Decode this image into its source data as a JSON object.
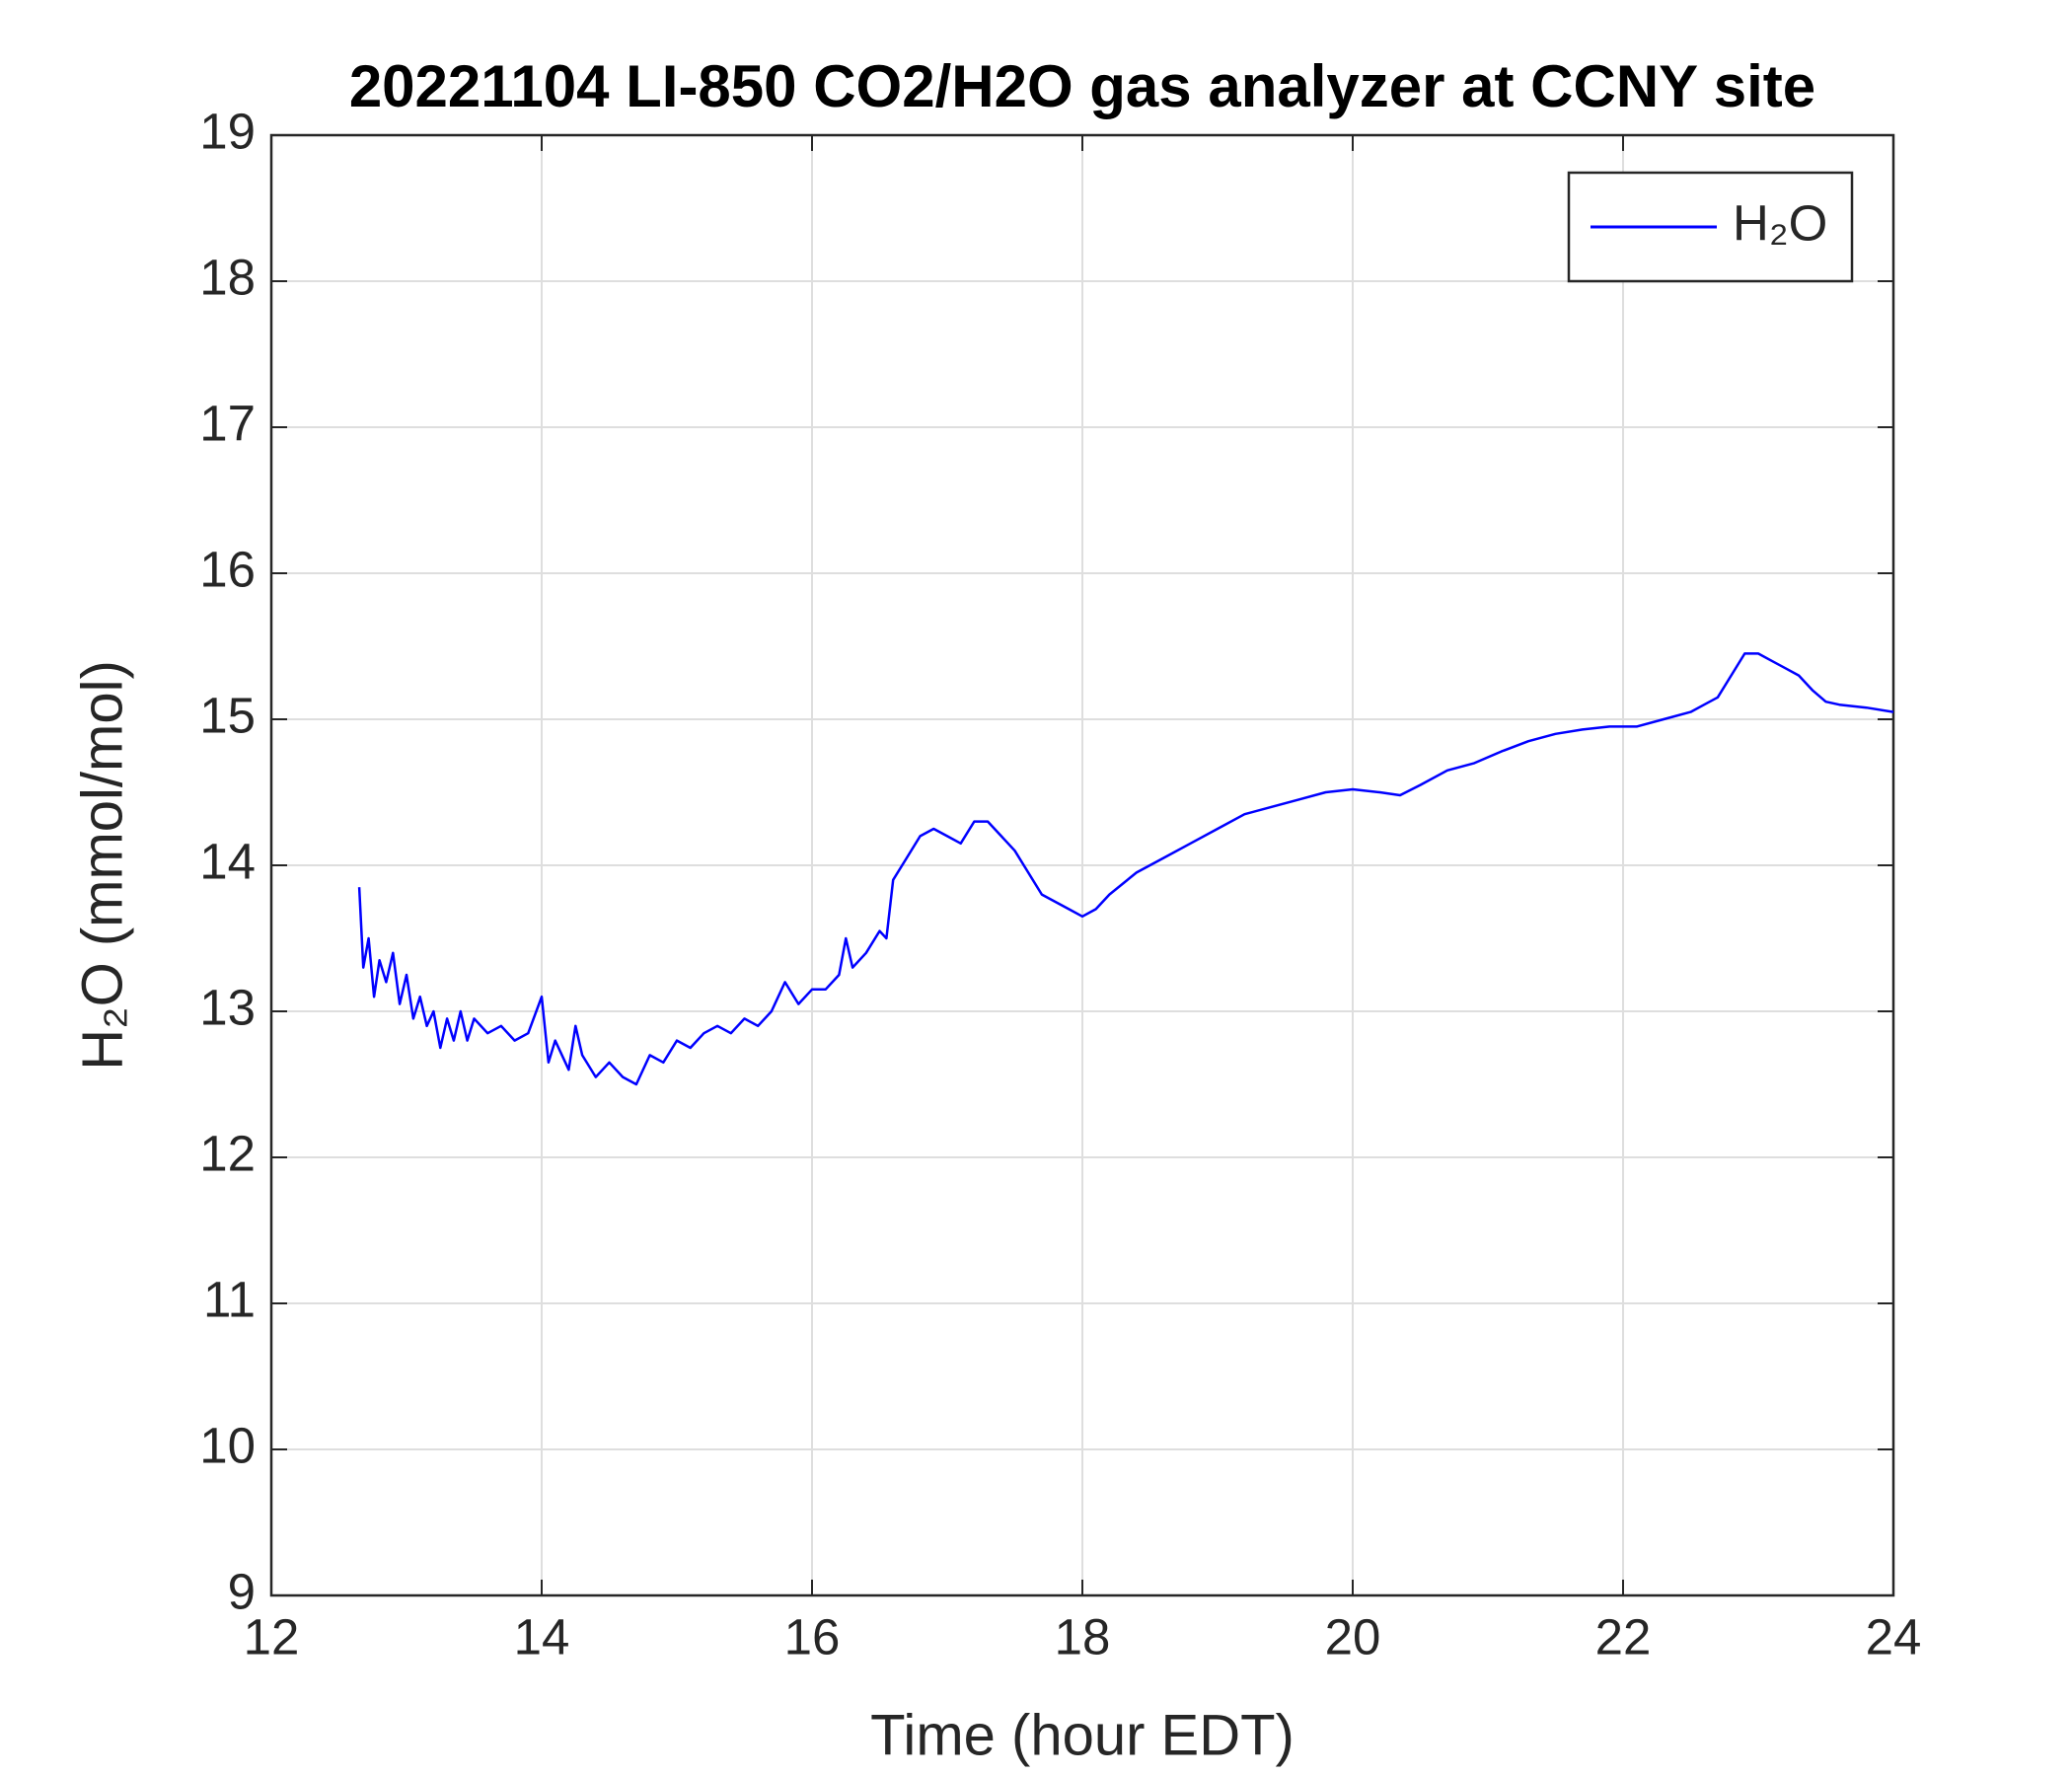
{
  "chart_data": {
    "type": "line",
    "title": "20221104 LI-850 CO2/H2O gas analyzer at CCNY site",
    "x_label": "Time (hour EDT)",
    "y_label": "H₂O (mmol/mol)",
    "xlim": [
      12,
      24
    ],
    "xticks": [
      12,
      14,
      16,
      18,
      20,
      22,
      24
    ],
    "ylim": [
      9,
      19
    ],
    "yticks": [
      9,
      10,
      11,
      12,
      13,
      14,
      15,
      16,
      17,
      18,
      19
    ],
    "grid": true,
    "legend": "top-right",
    "x": [
      12.65,
      12.68,
      12.72,
      12.76,
      12.8,
      12.85,
      12.9,
      12.95,
      13.0,
      13.05,
      13.1,
      13.15,
      13.2,
      13.25,
      13.3,
      13.35,
      13.4,
      13.45,
      13.5,
      13.6,
      13.7,
      13.8,
      13.9,
      14.0,
      14.05,
      14.1,
      14.2,
      14.25,
      14.3,
      14.4,
      14.5,
      14.6,
      14.7,
      14.8,
      14.9,
      15.0,
      15.1,
      15.2,
      15.3,
      15.4,
      15.5,
      15.6,
      15.7,
      15.8,
      15.9,
      16.0,
      16.1,
      16.2,
      16.25,
      16.3,
      16.4,
      16.5,
      16.55,
      16.6,
      16.7,
      16.8,
      16.9,
      17.0,
      17.1,
      17.2,
      17.3,
      17.4,
      17.5,
      17.6,
      17.7,
      17.8,
      17.9,
      18.0,
      18.1,
      18.2,
      18.4,
      18.6,
      18.8,
      19.0,
      19.2,
      19.4,
      19.6,
      19.8,
      20.0,
      20.2,
      20.35,
      20.5,
      20.7,
      20.9,
      21.1,
      21.3,
      21.5,
      21.7,
      21.9,
      22.1,
      22.3,
      22.5,
      22.6,
      22.7,
      22.8,
      22.9,
      23.0,
      23.1,
      23.2,
      23.3,
      23.4,
      23.5,
      23.6,
      23.8,
      24.0
    ],
    "series": [
      {
        "name": "H₂O",
        "color": "#0000ff",
        "values": [
          13.85,
          13.3,
          13.5,
          13.1,
          13.35,
          13.2,
          13.4,
          13.05,
          13.25,
          12.95,
          13.1,
          12.9,
          13.0,
          12.75,
          12.95,
          12.8,
          13.0,
          12.8,
          12.95,
          12.85,
          12.9,
          12.8,
          12.85,
          13.1,
          12.65,
          12.8,
          12.6,
          12.9,
          12.7,
          12.55,
          12.65,
          12.55,
          12.5,
          12.7,
          12.65,
          12.8,
          12.75,
          12.85,
          12.9,
          12.85,
          12.95,
          12.9,
          13.0,
          13.2,
          13.05,
          13.15,
          13.15,
          13.25,
          13.5,
          13.3,
          13.4,
          13.55,
          13.5,
          13.9,
          14.05,
          14.2,
          14.25,
          14.2,
          14.15,
          14.3,
          14.3,
          14.2,
          14.1,
          13.95,
          13.8,
          13.75,
          13.7,
          13.65,
          13.7,
          13.8,
          13.95,
          14.05,
          14.15,
          14.25,
          14.35,
          14.4,
          14.45,
          14.5,
          14.52,
          14.5,
          14.48,
          14.55,
          14.65,
          14.7,
          14.78,
          14.85,
          14.9,
          14.93,
          14.95,
          14.95,
          15.0,
          15.05,
          15.1,
          15.15,
          15.3,
          15.45,
          15.45,
          15.4,
          15.35,
          15.3,
          15.2,
          15.12,
          15.1,
          15.08,
          15.05
        ]
      }
    ]
  }
}
